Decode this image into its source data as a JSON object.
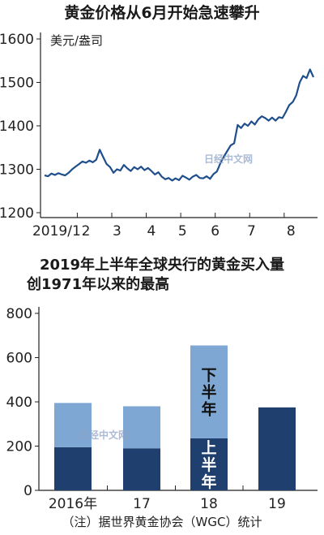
{
  "chart_data": [
    {
      "type": "line",
      "title": "黄金价格从6月开始急速攀升",
      "ylabel": "美元/盎司",
      "xlabel": "",
      "x_tick_labels": [
        "2019/1",
        "2",
        "3",
        "4",
        "5",
        "6",
        "7",
        "8"
      ],
      "y_tick_labels": [
        "1600",
        "1500",
        "1400",
        "1300",
        "1200"
      ],
      "ylim": [
        1200,
        1600
      ],
      "xlim": [
        0,
        7.8
      ],
      "grid": false,
      "colors": {
        "line": "#1f4e8c"
      },
      "series": [
        {
          "x": [
            0,
            0.1,
            0.2,
            0.3,
            0.4,
            0.5,
            0.6,
            0.7,
            0.8,
            0.9,
            1.0,
            1.1,
            1.2,
            1.3,
            1.4,
            1.5,
            1.6,
            1.7,
            1.8,
            1.9,
            2.0,
            2.1,
            2.2,
            2.3,
            2.4,
            2.5,
            2.6,
            2.7,
            2.8,
            2.9,
            3.0,
            3.1,
            3.2,
            3.3,
            3.4,
            3.5,
            3.6,
            3.7,
            3.8,
            3.9,
            4.0,
            4.1,
            4.2,
            4.3,
            4.4,
            4.5,
            4.6,
            4.7,
            4.8,
            4.9,
            5.0,
            5.1,
            5.2,
            5.3,
            5.4,
            5.5,
            5.6,
            5.7,
            5.8,
            5.9,
            6.0,
            6.1,
            6.2,
            6.3,
            6.4,
            6.5,
            6.6,
            6.7,
            6.8,
            6.9,
            7.0,
            7.1,
            7.2,
            7.3,
            7.4,
            7.5,
            7.6,
            7.7,
            7.8
          ],
          "values": [
            1286,
            1284,
            1290,
            1287,
            1291,
            1288,
            1286,
            1292,
            1300,
            1306,
            1312,
            1318,
            1315,
            1320,
            1316,
            1322,
            1345,
            1328,
            1312,
            1305,
            1292,
            1300,
            1297,
            1310,
            1302,
            1296,
            1305,
            1300,
            1306,
            1298,
            1303,
            1296,
            1288,
            1293,
            1283,
            1277,
            1280,
            1274,
            1279,
            1275,
            1285,
            1281,
            1276,
            1283,
            1287,
            1280,
            1279,
            1284,
            1278,
            1289,
            1295,
            1314,
            1329,
            1342,
            1355,
            1360,
            1402,
            1395,
            1405,
            1400,
            1410,
            1403,
            1415,
            1422,
            1418,
            1412,
            1419,
            1412,
            1420,
            1418,
            1432,
            1448,
            1455,
            1470,
            1500,
            1515,
            1510,
            1530,
            1512
          ]
        }
      ]
    },
    {
      "type": "bar",
      "title": "2019年上半年全球央行的黄金买入量创1971年以来的最高",
      "title_lines": [
        "2019年上半年全球央行的黄金买入量",
        "创1971年以来的最高"
      ],
      "categories": [
        "2016年",
        "17",
        "18",
        "19"
      ],
      "ylim": [
        0,
        800
      ],
      "y_tick_labels": [
        "800",
        "600",
        "400",
        "200",
        "0"
      ],
      "stacked": true,
      "grid": false,
      "series": [
        {
          "name": "上半年",
          "values": [
            195,
            190,
            235,
            375
          ],
          "color": "#1f3f6e"
        },
        {
          "name": "下半年",
          "values": [
            200,
            190,
            420,
            0
          ],
          "color": "#7ea7d3"
        }
      ],
      "annotation_lower": "上\n半\n年",
      "annotation_upper": "下\n半\n年"
    }
  ],
  "footnote": "（注）据世界黄金协会（WGC）统计",
  "watermark": "日经中文网"
}
